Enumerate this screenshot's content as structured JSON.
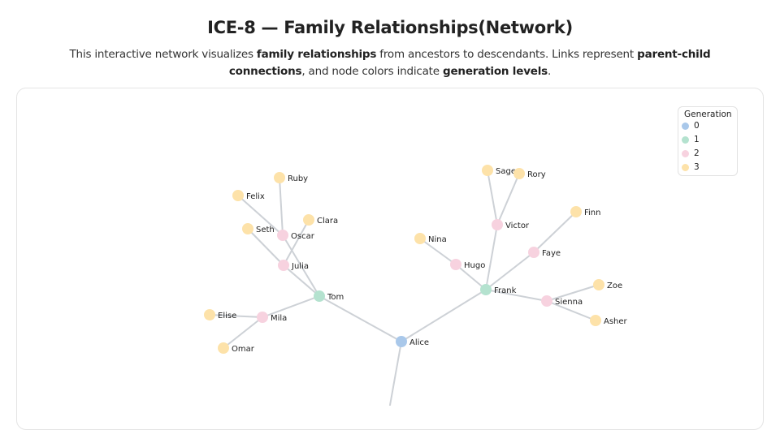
{
  "title": "ICE-8 — Family Relationships(Network)",
  "subtitle": [
    {
      "text": "This interactive network visualizes ",
      "bold": false
    },
    {
      "text": "family relationships",
      "bold": true
    },
    {
      "text": " from ancestors to descendants. Links represent ",
      "bold": false
    },
    {
      "text": "parent-child connections",
      "bold": true
    },
    {
      "text": ", and node colors indicate ",
      "bold": false
    },
    {
      "text": "generation levels",
      "bold": true
    },
    {
      "text": ".",
      "bold": false
    }
  ],
  "legend": {
    "title": "Generation",
    "items": [
      {
        "label": "0",
        "color": "#a9c8ea"
      },
      {
        "label": "1",
        "color": "#b4e2cf"
      },
      {
        "label": "2",
        "color": "#f7d2df"
      },
      {
        "label": "3",
        "color": "#fde2a9"
      }
    ]
  },
  "link_color": "#cdd1d6",
  "nodes": [
    {
      "name": "Alice",
      "generation": 0
    },
    {
      "name": "Tom",
      "generation": 1
    },
    {
      "name": "Frank",
      "generation": 1
    },
    {
      "name": "Oscar",
      "generation": 2
    },
    {
      "name": "Julia",
      "generation": 2
    },
    {
      "name": "Mila",
      "generation": 2
    },
    {
      "name": "Victor",
      "generation": 2
    },
    {
      "name": "Hugo",
      "generation": 2
    },
    {
      "name": "Faye",
      "generation": 2
    },
    {
      "name": "Sienna",
      "generation": 2
    },
    {
      "name": "Ruby",
      "generation": 3
    },
    {
      "name": "Felix",
      "generation": 3
    },
    {
      "name": "Clara",
      "generation": 3
    },
    {
      "name": "Seth",
      "generation": 3
    },
    {
      "name": "Elise",
      "generation": 3
    },
    {
      "name": "Omar",
      "generation": 3
    },
    {
      "name": "Sage",
      "generation": 3
    },
    {
      "name": "Rory",
      "generation": 3
    },
    {
      "name": "Nina",
      "generation": 3
    },
    {
      "name": "Finn",
      "generation": 3
    },
    {
      "name": "Zoe",
      "generation": 3
    },
    {
      "name": "Asher",
      "generation": 3
    }
  ],
  "links": [
    [
      "Alice",
      "Tom"
    ],
    [
      "Alice",
      "Frank"
    ],
    [
      "Tom",
      "Oscar"
    ],
    [
      "Tom",
      "Julia"
    ],
    [
      "Tom",
      "Mila"
    ],
    [
      "Oscar",
      "Ruby"
    ],
    [
      "Oscar",
      "Felix"
    ],
    [
      "Julia",
      "Clara"
    ],
    [
      "Julia",
      "Seth"
    ],
    [
      "Mila",
      "Elise"
    ],
    [
      "Mila",
      "Omar"
    ],
    [
      "Frank",
      "Victor"
    ],
    [
      "Frank",
      "Hugo"
    ],
    [
      "Frank",
      "Faye"
    ],
    [
      "Frank",
      "Sienna"
    ],
    [
      "Victor",
      "Sage"
    ],
    [
      "Victor",
      "Rory"
    ],
    [
      "Hugo",
      "Nina"
    ],
    [
      "Faye",
      "Finn"
    ],
    [
      "Sienna",
      "Zoe"
    ],
    [
      "Sienna",
      "Asher"
    ]
  ]
}
